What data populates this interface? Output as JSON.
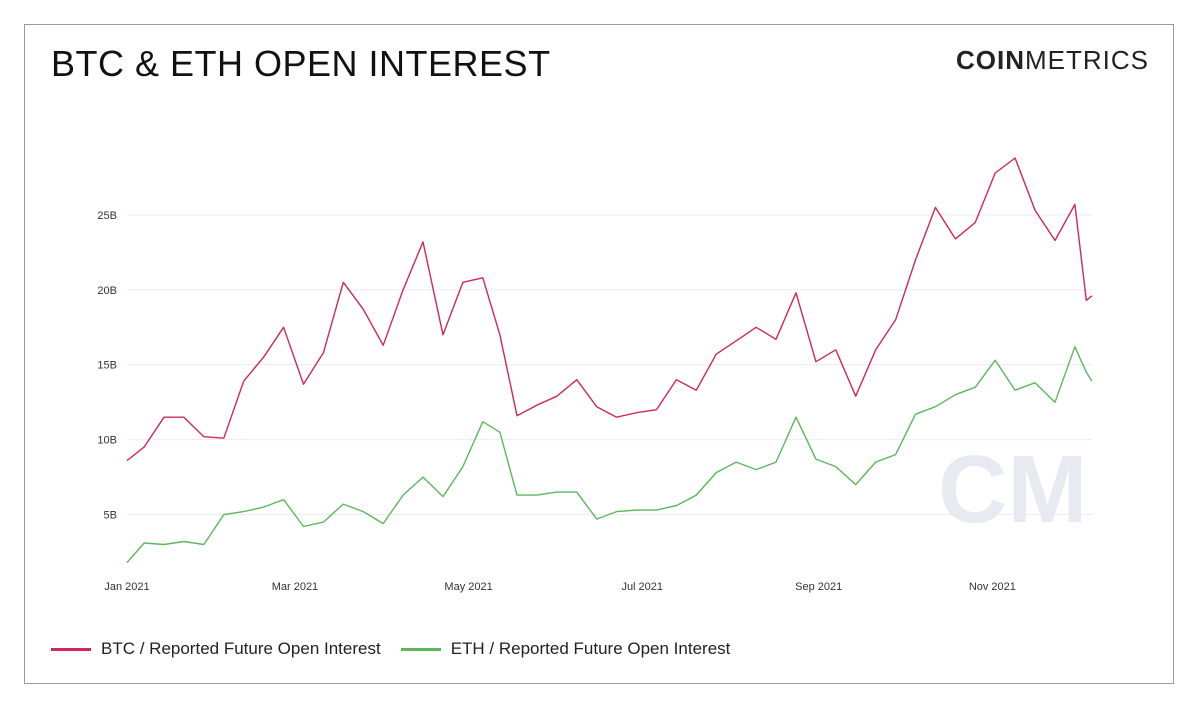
{
  "header": {
    "title": "BTC & ETH OPEN INTEREST",
    "logo_bold": "COIN",
    "logo_light": "METRICS"
  },
  "watermark": "CM",
  "colors": {
    "btc": "#d0285a",
    "eth": "#5cb85c",
    "grid": "#ececec"
  },
  "chart_data": {
    "type": "line",
    "x": [
      "2021-01-01",
      "2021-01-07",
      "2021-01-14",
      "2021-01-21",
      "2021-01-28",
      "2021-02-04",
      "2021-02-11",
      "2021-02-18",
      "2021-02-25",
      "2021-03-04",
      "2021-03-11",
      "2021-03-18",
      "2021-03-25",
      "2021-04-01",
      "2021-04-08",
      "2021-04-15",
      "2021-04-22",
      "2021-04-29",
      "2021-05-06",
      "2021-05-12",
      "2021-05-18",
      "2021-05-25",
      "2021-06-01",
      "2021-06-08",
      "2021-06-15",
      "2021-06-22",
      "2021-06-29",
      "2021-07-06",
      "2021-07-13",
      "2021-07-20",
      "2021-07-27",
      "2021-08-03",
      "2021-08-10",
      "2021-08-17",
      "2021-08-24",
      "2021-08-31",
      "2021-09-07",
      "2021-09-14",
      "2021-09-21",
      "2021-09-28",
      "2021-10-05",
      "2021-10-12",
      "2021-10-19",
      "2021-10-26",
      "2021-11-02",
      "2021-11-09",
      "2021-11-16",
      "2021-11-23",
      "2021-11-30",
      "2021-12-04",
      "2021-12-06"
    ],
    "series": [
      {
        "name": "BTC / Reported Future Open Interest",
        "color": "#d0285a",
        "values": [
          8.6,
          9.5,
          11.5,
          11.5,
          10.2,
          10.1,
          13.9,
          15.5,
          17.5,
          13.7,
          15.8,
          20.5,
          18.7,
          16.3,
          20.0,
          23.2,
          17.0,
          20.5,
          20.8,
          17.0,
          11.6,
          12.3,
          12.9,
          14.0,
          12.2,
          11.5,
          11.8,
          12.0,
          14.0,
          13.3,
          15.7,
          16.6,
          17.5,
          16.7,
          19.8,
          15.2,
          16.0,
          12.9,
          16.0,
          18.0,
          22.0,
          25.5,
          23.4,
          24.5,
          27.8,
          28.8,
          25.3,
          23.3,
          25.7,
          19.3,
          19.6
        ]
      },
      {
        "name": "ETH / Reported Future Open Interest",
        "color": "#5cb85c",
        "values": [
          1.8,
          3.1,
          3.0,
          3.2,
          3.0,
          5.0,
          5.2,
          5.5,
          6.0,
          4.2,
          4.5,
          5.7,
          5.2,
          4.4,
          6.3,
          7.5,
          6.2,
          8.2,
          11.2,
          10.5,
          6.3,
          6.3,
          6.5,
          6.5,
          4.7,
          5.2,
          5.3,
          5.3,
          5.6,
          6.3,
          7.8,
          8.5,
          8.0,
          8.5,
          11.5,
          8.7,
          8.2,
          7.0,
          8.5,
          9.0,
          11.7,
          12.2,
          13.0,
          13.5,
          15.3,
          13.3,
          13.8,
          12.5,
          16.2,
          14.5,
          13.9
        ]
      }
    ],
    "title": "BTC & ETH OPEN INTEREST",
    "xlabel": "",
    "ylabel": "",
    "xlim": [
      "2021-01-01",
      "2021-12-06"
    ],
    "ylim": [
      1.5,
      30
    ],
    "x_ticks": [
      "Jan 2021",
      "Mar 2021",
      "May 2021",
      "Jul 2021",
      "Sep 2021",
      "Nov 2021"
    ],
    "x_tick_dates": [
      "2021-01-01",
      "2021-03-01",
      "2021-05-01",
      "2021-07-01",
      "2021-09-01",
      "2021-11-01"
    ],
    "y_ticks": [
      5,
      10,
      15,
      20,
      25
    ],
    "y_tick_labels": [
      "5B",
      "10B",
      "15B",
      "20B",
      "25B"
    ],
    "grid": true,
    "legend": "bottom-left"
  }
}
